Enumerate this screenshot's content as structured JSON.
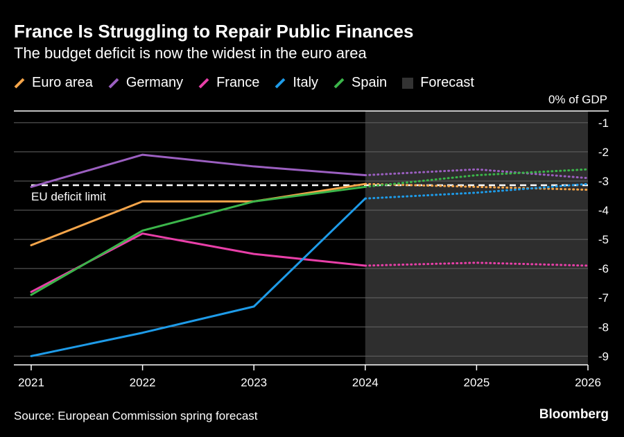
{
  "chart_data": {
    "type": "line",
    "title": "France Is Struggling to Repair Public Finances",
    "subtitle": "The budget deficit is now the widest in the euro area",
    "unit_label": "0% of GDP",
    "x": [
      2021,
      2022,
      2023,
      2024,
      2025,
      2026
    ],
    "x_tick_labels": [
      "2021",
      "2022",
      "2023",
      "2024",
      "2025",
      "2026"
    ],
    "ylim": [
      -9.3,
      -0.6
    ],
    "y_ticks": [
      -1,
      -2,
      -3,
      -4,
      -5,
      -6,
      -7,
      -8,
      -9
    ],
    "y_tick_labels": [
      "-1",
      "-2",
      "-3",
      "-4",
      "-5",
      "-6",
      "-7",
      "-8",
      "-9"
    ],
    "forecast_start": 2024,
    "forecast_end": 2026,
    "forecast_label": "Forecast",
    "reference_line": {
      "value": -3.0,
      "label": "EU deficit limit"
    },
    "series": [
      {
        "name": "Euro area",
        "color": "#f5a54a",
        "values": [
          -5.2,
          -3.7,
          -3.7,
          -3.1,
          -3.2,
          -3.3
        ]
      },
      {
        "name": "Germany",
        "color": "#9b5fc0",
        "values": [
          -3.2,
          -2.1,
          -2.5,
          -2.8,
          -2.6,
          -2.9
        ]
      },
      {
        "name": "France",
        "color": "#e83fa8",
        "values": [
          -6.8,
          -4.8,
          -5.5,
          -5.9,
          -5.8,
          -5.9
        ]
      },
      {
        "name": "Italy",
        "color": "#1e9be8",
        "values": [
          -9.0,
          -8.2,
          -7.3,
          -3.6,
          -3.4,
          -3.1
        ]
      },
      {
        "name": "Spain",
        "color": "#3bb54a",
        "values": [
          -6.9,
          -4.7,
          -3.7,
          -3.2,
          -2.8,
          -2.6
        ]
      }
    ],
    "grid": true,
    "legend_position": "top-left"
  },
  "footer": {
    "source": "Source: European Commission spring forecast",
    "brand": "Bloomberg"
  }
}
